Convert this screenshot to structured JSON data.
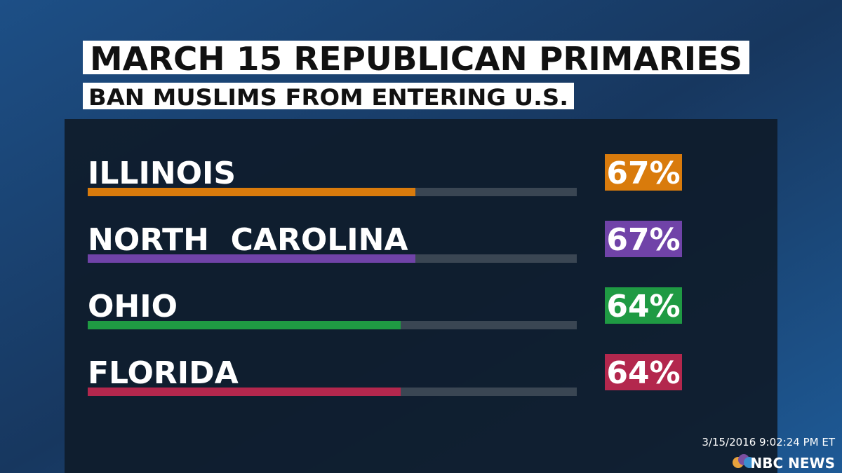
{
  "chart_data": {
    "type": "bar",
    "orientation": "horizontal",
    "title": "MARCH 15 REPUBLICAN PRIMARIES",
    "subtitle": "BAN MUSLIMS FROM ENTERING U.S.",
    "categories": [
      "ILLINOIS",
      "NORTH  CAROLINA",
      "OHIO",
      "FLORIDA"
    ],
    "values": [
      67,
      67,
      64,
      64
    ],
    "value_labels": [
      "67%",
      "67%",
      "64%",
      "64%"
    ],
    "colors": [
      "#d97b0c",
      "#7043a8",
      "#1f9a43",
      "#b3274d"
    ],
    "xlim": [
      0,
      100
    ],
    "timestamp": "3/15/2016 9:02:24 PM ET",
    "source": "NBC NEWS"
  }
}
